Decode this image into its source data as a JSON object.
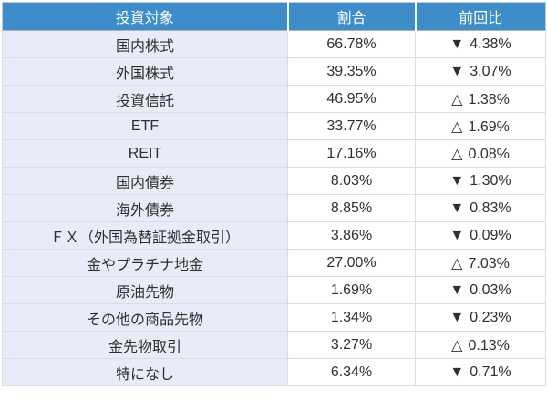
{
  "colors": {
    "header_bg": "#3c8dc9",
    "header_text": "#ffffff",
    "category_cell_bg": "#e9ecf8",
    "value_cell_bg": "#ffffff",
    "border": "#d9dde8",
    "text": "#2f2f2f"
  },
  "chart_data": {
    "type": "table",
    "title": "",
    "columns": [
      "投資対象",
      "割合",
      "前回比"
    ],
    "rows": [
      {
        "name": "国内株式",
        "ratio": "66.78%",
        "direction": "down",
        "icon": "▼",
        "change": "4.38%"
      },
      {
        "name": "外国株式",
        "ratio": "39.35%",
        "direction": "down",
        "icon": "▼",
        "change": "3.07%"
      },
      {
        "name": "投資信託",
        "ratio": "46.95%",
        "direction": "up",
        "icon": "△",
        "change": "1.38%"
      },
      {
        "name": "ETF",
        "ratio": "33.77%",
        "direction": "up",
        "icon": "△",
        "change": "1.69%"
      },
      {
        "name": "REIT",
        "ratio": "17.16%",
        "direction": "up",
        "icon": "△",
        "change": "0.08%"
      },
      {
        "name": "国内債券",
        "ratio": "8.03%",
        "direction": "down",
        "icon": "▼",
        "change": "1.30%"
      },
      {
        "name": "海外債券",
        "ratio": "8.85%",
        "direction": "down",
        "icon": "▼",
        "change": "0.83%"
      },
      {
        "name": "ＦＸ（外国為替証拠金取引）",
        "ratio": "3.86%",
        "direction": "down",
        "icon": "▼",
        "change": "0.09%"
      },
      {
        "name": "金やプラチナ地金",
        "ratio": "27.00%",
        "direction": "up",
        "icon": "△",
        "change": "7.03%"
      },
      {
        "name": "原油先物",
        "ratio": "1.69%",
        "direction": "down",
        "icon": "▼",
        "change": "0.03%"
      },
      {
        "name": "その他の商品先物",
        "ratio": "1.34%",
        "direction": "down",
        "icon": "▼",
        "change": "0.23%"
      },
      {
        "name": "金先物取引",
        "ratio": "3.27%",
        "direction": "up",
        "icon": "△",
        "change": "0.13%"
      },
      {
        "name": "特になし",
        "ratio": "6.34%",
        "direction": "down",
        "icon": "▼",
        "change": "0.71%"
      }
    ]
  }
}
